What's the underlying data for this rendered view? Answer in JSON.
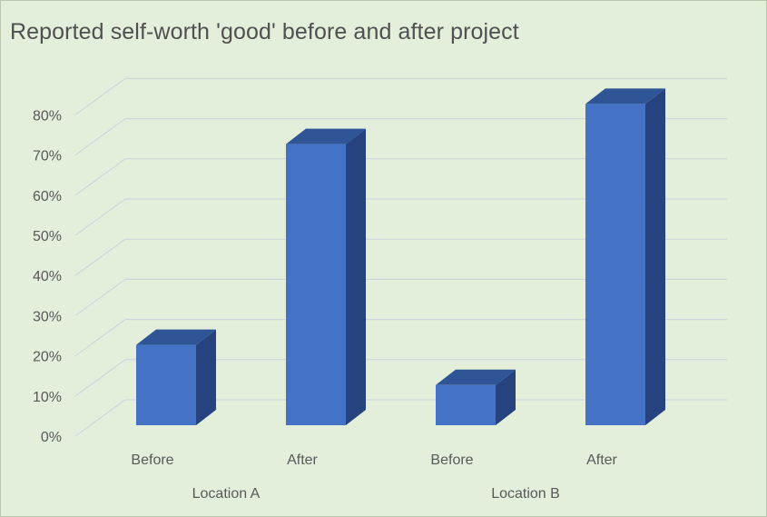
{
  "chart_data": {
    "type": "bar",
    "title": "Reported self-worth 'good' before and after project",
    "groups": [
      {
        "name": "Location A",
        "categories": [
          "Before",
          "After"
        ],
        "values": [
          0.2,
          0.7
        ]
      },
      {
        "name": "Location B",
        "categories": [
          "Before",
          "After"
        ],
        "values": [
          0.1,
          0.8
        ]
      }
    ],
    "ylim": [
      0,
      0.8
    ],
    "yticks": [
      "0%",
      "10%",
      "20%",
      "30%",
      "40%",
      "50%",
      "60%",
      "70%",
      "80%"
    ],
    "grid": true,
    "colors": {
      "background": "#e3eedb",
      "bar_front": "#4472c4",
      "bar_top": "#2f5597",
      "bar_side": "#27437f",
      "gridline": "#c9d3dc"
    }
  }
}
